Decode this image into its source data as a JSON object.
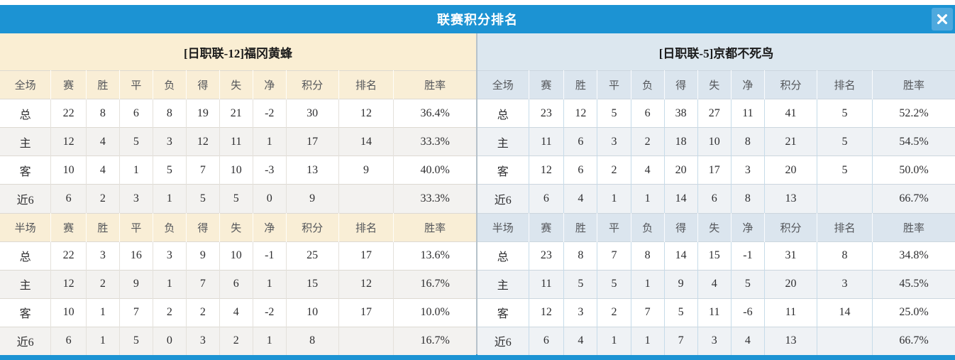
{
  "dialog": {
    "title": "联赛积分排名"
  },
  "icons": {
    "close": "x-cross"
  },
  "columns": [
    "赛",
    "胜",
    "平",
    "负",
    "得",
    "失",
    "净",
    "积分",
    "排名",
    "胜率"
  ],
  "panels": [
    {
      "team": "[日职联-12]福冈黄蜂",
      "tables": [
        {
          "first_col": "全场",
          "rows": [
            [
              "总",
              "22",
              "8",
              "6",
              "8",
              "19",
              "21",
              "-2",
              "30",
              "12",
              "36.4%"
            ],
            [
              "主",
              "12",
              "4",
              "5",
              "3",
              "12",
              "11",
              "1",
              "17",
              "14",
              "33.3%"
            ],
            [
              "客",
              "10",
              "4",
              "1",
              "5",
              "7",
              "10",
              "-3",
              "13",
              "9",
              "40.0%"
            ],
            [
              "近6",
              "6",
              "2",
              "3",
              "1",
              "5",
              "5",
              "0",
              "9",
              "",
              "33.3%"
            ]
          ]
        },
        {
          "first_col": "半场",
          "rows": [
            [
              "总",
              "22",
              "3",
              "16",
              "3",
              "9",
              "10",
              "-1",
              "25",
              "17",
              "13.6%"
            ],
            [
              "主",
              "12",
              "2",
              "9",
              "1",
              "7",
              "6",
              "1",
              "15",
              "12",
              "16.7%"
            ],
            [
              "客",
              "10",
              "1",
              "7",
              "2",
              "2",
              "4",
              "-2",
              "10",
              "17",
              "10.0%"
            ],
            [
              "近6",
              "6",
              "1",
              "5",
              "0",
              "3",
              "2",
              "1",
              "8",
              "",
              "16.7%"
            ]
          ]
        }
      ]
    },
    {
      "team": "[日职联-5]京都不死鸟",
      "tables": [
        {
          "first_col": "全场",
          "rows": [
            [
              "总",
              "23",
              "12",
              "5",
              "6",
              "38",
              "27",
              "11",
              "41",
              "5",
              "52.2%"
            ],
            [
              "主",
              "11",
              "6",
              "3",
              "2",
              "18",
              "10",
              "8",
              "21",
              "5",
              "54.5%"
            ],
            [
              "客",
              "12",
              "6",
              "2",
              "4",
              "20",
              "17",
              "3",
              "20",
              "5",
              "50.0%"
            ],
            [
              "近6",
              "6",
              "4",
              "1",
              "1",
              "14",
              "6",
              "8",
              "13",
              "",
              "66.7%"
            ]
          ]
        },
        {
          "first_col": "半场",
          "rows": [
            [
              "总",
              "23",
              "8",
              "7",
              "8",
              "14",
              "15",
              "-1",
              "31",
              "8",
              "34.8%"
            ],
            [
              "主",
              "11",
              "5",
              "5",
              "1",
              "9",
              "4",
              "5",
              "20",
              "3",
              "45.5%"
            ],
            [
              "客",
              "12",
              "3",
              "2",
              "7",
              "5",
              "11",
              "-6",
              "11",
              "14",
              "25.0%"
            ],
            [
              "近6",
              "6",
              "4",
              "1",
              "1",
              "7",
              "3",
              "4",
              "13",
              "",
              "66.7%"
            ]
          ]
        }
      ]
    }
  ],
  "colors": {
    "accent_blue": "#1c93d3",
    "close_button_blue": "#4ea9de",
    "home_header_cream": "#faeed3",
    "away_header_blue": "#dce7ef",
    "stripe_left": "#f3f2f0",
    "stripe_right": "#eff2f5",
    "points_red": "#e6402f",
    "rank_blue": "#3e7fce",
    "home_label_red": "#d93335",
    "away_label_blue": "#6a68cf"
  }
}
